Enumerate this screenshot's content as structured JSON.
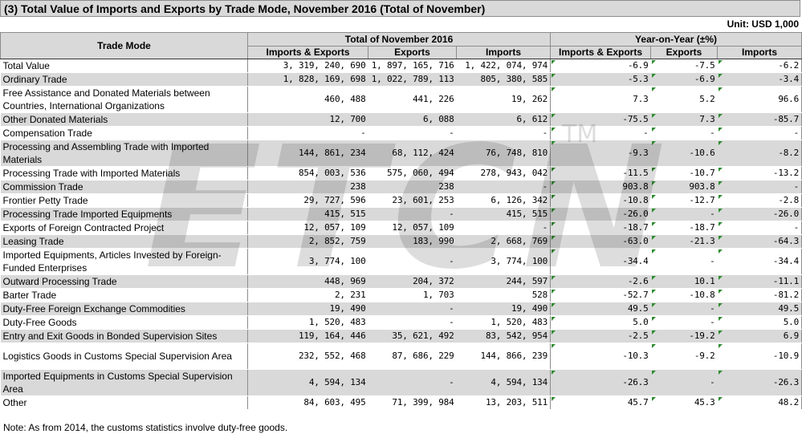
{
  "title": "(3) Total Value of Imports and Exports by Trade Mode, November 2016 (Total of November)",
  "unit": "Unit: USD 1,000",
  "header": {
    "trade_mode": "Trade Mode",
    "group_total": "Total of November 2016",
    "group_yoy": "Year-on-Year (±%)",
    "cols": [
      "Imports & Exports",
      "Exports",
      "Imports",
      "Imports & Exports",
      "Exports",
      "Imports"
    ]
  },
  "rows": [
    {
      "label": "Total Value",
      "v": [
        "3, 319, 240, 690",
        "1, 897, 165, 716",
        "1, 422, 074, 974",
        "-6.9",
        "-7.5",
        "-6.2"
      ],
      "shade": false,
      "tall": false
    },
    {
      "label": "Ordinary Trade",
      "v": [
        "1, 828, 169, 698",
        "1, 022, 789, 113",
        "805, 380, 585",
        "-5.3",
        "-6.9",
        "-3.4"
      ],
      "shade": true,
      "tall": false
    },
    {
      "label": "Free Assistance and Donated Materials between Countries, International Organizations",
      "v": [
        "460, 488",
        "441, 226",
        "19, 262",
        "7.3",
        "5.2",
        "96.6"
      ],
      "shade": false,
      "tall": true
    },
    {
      "label": "Other Donated Materials",
      "v": [
        "12, 700",
        "6, 088",
        "6, 612",
        "-75.5",
        "7.3",
        "-85.7"
      ],
      "shade": true,
      "tall": false
    },
    {
      "label": "Compensation Trade",
      "v": [
        "-",
        "-",
        "-",
        "-",
        "-",
        "-"
      ],
      "shade": false,
      "tall": false
    },
    {
      "label": "Processing and Assembling Trade with Imported Materials",
      "v": [
        "144, 861, 234",
        "68, 112, 424",
        "76, 748, 810",
        "-9.3",
        "-10.6",
        "-8.2"
      ],
      "shade": true,
      "tall": true
    },
    {
      "label": "Processing Trade with Imported Materials",
      "v": [
        "854, 003, 536",
        "575, 060, 494",
        "278, 943, 042",
        "-11.5",
        "-10.7",
        "-13.2"
      ],
      "shade": false,
      "tall": false
    },
    {
      "label": "Commission Trade",
      "v": [
        "238",
        "238",
        "-",
        "903.8",
        "903.8",
        "-"
      ],
      "shade": true,
      "tall": false
    },
    {
      "label": "Frontier Petty Trade",
      "v": [
        "29, 727, 596",
        "23, 601, 253",
        "6, 126, 342",
        "-10.8",
        "-12.7",
        "-2.8"
      ],
      "shade": false,
      "tall": false
    },
    {
      "label": "Processing Trade Imported Equipments",
      "v": [
        "415, 515",
        "-",
        "415, 515",
        "-26.0",
        "-",
        "-26.0"
      ],
      "shade": true,
      "tall": false
    },
    {
      "label": "Exports of Foreign Contracted Project",
      "v": [
        "12, 057, 109",
        "12, 057, 109",
        "-",
        "-18.7",
        "-18.7",
        "-"
      ],
      "shade": false,
      "tall": false
    },
    {
      "label": "Leasing Trade",
      "v": [
        "2, 852, 759",
        "183, 990",
        "2, 668, 769",
        "-63.0",
        "-21.3",
        "-64.3"
      ],
      "shade": true,
      "tall": false
    },
    {
      "label": "Imported Equipments, Articles Invested by Foreign-Funded Enterprises",
      "v": [
        "3, 774, 100",
        "-",
        "3, 774, 100",
        "-34.4",
        "-",
        "-34.4"
      ],
      "shade": false,
      "tall": true
    },
    {
      "label": "Outward Processing Trade",
      "v": [
        "448, 969",
        "204, 372",
        "244, 597",
        "-2.6",
        "10.1",
        "-11.1"
      ],
      "shade": true,
      "tall": false
    },
    {
      "label": "Barter Trade",
      "v": [
        "2, 231",
        "1, 703",
        "528",
        "-52.7",
        "-10.8",
        "-81.2"
      ],
      "shade": false,
      "tall": false
    },
    {
      "label": "Duty-Free Foreign Exchange Commodities",
      "v": [
        "19, 490",
        "-",
        "19, 490",
        "49.5",
        "-",
        "49.5"
      ],
      "shade": true,
      "tall": false
    },
    {
      "label": "Duty-Free Goods",
      "v": [
        "1, 520, 483",
        "-",
        "1, 520, 483",
        "5.0",
        "-",
        "5.0"
      ],
      "shade": false,
      "tall": false
    },
    {
      "label": "Entry and Exit Goods in Bonded Supervision Sites",
      "v": [
        "119, 164, 446",
        "35, 621, 492",
        "83, 542, 954",
        "-2.5",
        "-19.2",
        "6.9"
      ],
      "shade": true,
      "tall": false
    },
    {
      "label": "Logistics Goods in Customs Special Supervision Area",
      "v": [
        "232, 552, 468",
        "87, 686, 229",
        "144, 866, 239",
        "-10.3",
        "-9.2",
        "-10.9"
      ],
      "shade": false,
      "tall": true
    },
    {
      "label": "Imported Equipments in Customs Special Supervision Area",
      "v": [
        "4, 594, 134",
        "-",
        "4, 594, 134",
        "-26.3",
        "-",
        "-26.3"
      ],
      "shade": true,
      "tall": true
    },
    {
      "label": "Other",
      "v": [
        "84, 603, 495",
        "71, 399, 984",
        "13, 203, 511",
        "45.7",
        "45.3",
        "48.2"
      ],
      "shade": false,
      "tall": false
    }
  ],
  "note": "Note: As from 2014, the customs statistics involve duty-free goods.",
  "watermark": {
    "text": "ETCN",
    "tm": "TM"
  }
}
